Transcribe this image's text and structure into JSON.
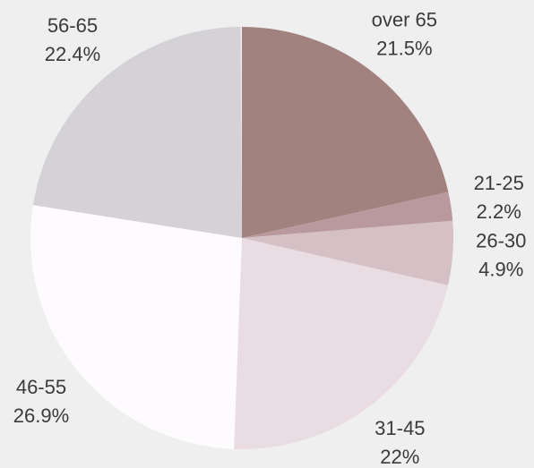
{
  "chart_data": {
    "type": "pie",
    "categories": [
      "over 65",
      "21-25",
      "26-30",
      "31-45",
      "46-55",
      "56-65"
    ],
    "values": [
      21.5,
      2.2,
      4.9,
      22,
      26.9,
      22.4
    ],
    "value_labels": [
      "21.5%",
      "2.2%",
      "4.9%",
      "22%",
      "26.9%",
      "22.4%"
    ],
    "colors": [
      "#a2827f",
      "#b9999d",
      "#d5c1c5",
      "#e9dce3",
      "#fdfbfd",
      "#d4d1d7"
    ]
  }
}
